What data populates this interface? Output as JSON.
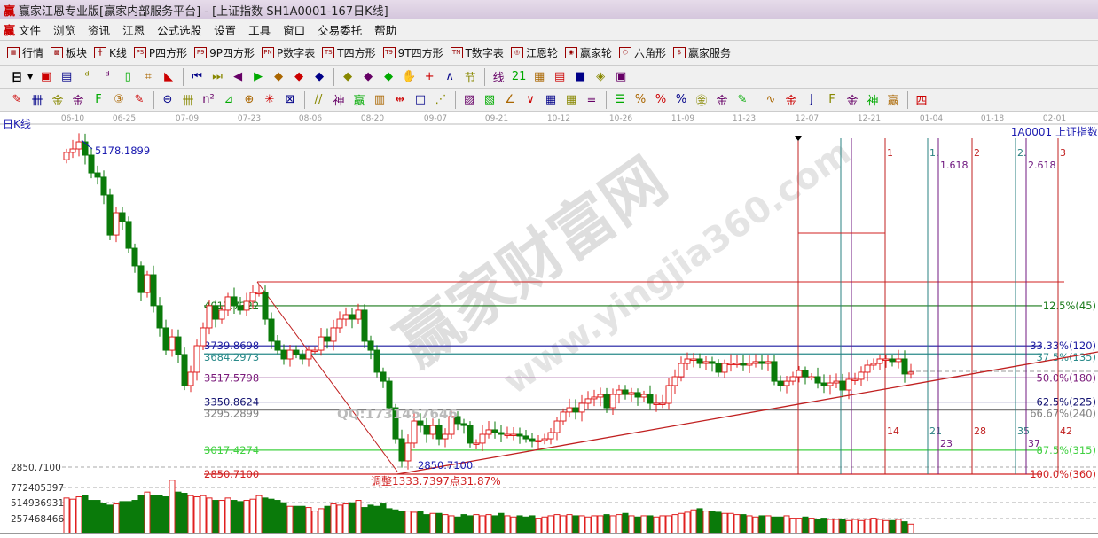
{
  "window": {
    "title": "赢家江恩专业版[赢家内部服务平台] - [上证指数  SH1A0001-167日K线]",
    "logo": "赢"
  },
  "menu": [
    "文件",
    "浏览",
    "资讯",
    "江恩",
    "公式选股",
    "设置",
    "工具",
    "窗口",
    "交易委托",
    "帮助"
  ],
  "toolbar1": [
    {
      "icon": "quote-table-icon",
      "label": "行情",
      "glyph": "▦"
    },
    {
      "icon": "sector-blocks-icon",
      "label": "板块",
      "glyph": "▩"
    },
    {
      "icon": "kline-icon",
      "label": "K线",
      "glyph": "╫"
    },
    {
      "icon": "ps-icon",
      "label": "P四方形",
      "glyph": "PS"
    },
    {
      "icon": "p9-icon",
      "label": "9P四方形",
      "glyph": "P9"
    },
    {
      "icon": "pn-icon",
      "label": "P数字表",
      "glyph": "PN"
    },
    {
      "icon": "ts-icon",
      "label": "T四方形",
      "glyph": "TS"
    },
    {
      "icon": "t9-icon",
      "label": "9T四方形",
      "glyph": "T9"
    },
    {
      "icon": "tn-icon",
      "label": "T数字表",
      "glyph": "TN"
    },
    {
      "icon": "gann-wheel-icon",
      "label": "江恩轮",
      "glyph": "◎"
    },
    {
      "icon": "winner-wheel-icon",
      "label": "赢家轮",
      "glyph": "◉"
    },
    {
      "icon": "hexagon-icon",
      "label": "六角形",
      "glyph": "⬡"
    },
    {
      "icon": "dollar-icon",
      "label": "赢家服务",
      "glyph": "$"
    }
  ],
  "toolbar2": {
    "period": "日",
    "icons": [
      [
        "window-icon",
        "▣"
      ],
      [
        "doc-icon",
        "▤"
      ],
      [
        "chart3-icon",
        "ᵈ"
      ],
      [
        "chart9-icon",
        "ᵈ"
      ],
      [
        "candle-type-icon",
        "▯"
      ],
      [
        "draw-icon",
        "⌗"
      ],
      [
        "flag-icon",
        "◣"
      ],
      [
        "first-icon",
        "⏮"
      ],
      [
        "last-icon",
        "⏭"
      ],
      [
        "left-icon",
        "◀"
      ],
      [
        "right-icon",
        "▶"
      ],
      [
        "zoom-left-icon",
        "◆"
      ],
      [
        "zoom-right-icon",
        "◆"
      ],
      [
        "expand-icon",
        "◆"
      ],
      [
        "shrink-icon",
        "◆"
      ],
      [
        "zoom-in-icon",
        "◆"
      ],
      [
        "zoom-out-icon",
        "◆"
      ],
      [
        "hand-icon",
        "✋"
      ],
      [
        "crosshair-icon",
        "+"
      ],
      [
        "line-icon",
        "∧"
      ],
      [
        "section-icon",
        "节"
      ],
      [
        "line-chart-icon",
        "线"
      ],
      [
        "calendar-icon",
        "21"
      ],
      [
        "calculator-icon",
        "▦"
      ],
      [
        "notes-icon",
        "▤"
      ],
      [
        "save-icon",
        "■"
      ],
      [
        "network-icon",
        "◈"
      ],
      [
        "print-icon",
        "▣"
      ]
    ]
  },
  "toolbar3": {
    "icons": [
      [
        "pen-icon",
        "✎"
      ],
      [
        "parallel-icon",
        "卌"
      ],
      [
        "gold-icon",
        "金"
      ],
      [
        "gold2-icon",
        "金"
      ],
      [
        "fib-icon",
        "F"
      ],
      [
        "spiral-icon",
        "③"
      ],
      [
        "pen2-icon",
        "✎"
      ],
      [
        "circle-icon",
        "⊖"
      ],
      [
        "grid-icon",
        "卌"
      ],
      [
        "n2-icon",
        "n²"
      ],
      [
        "angle-icon",
        "⊿"
      ],
      [
        "target-icon",
        "⊕"
      ],
      [
        "star-icon",
        "✳"
      ],
      [
        "box-icon",
        "⊠"
      ],
      [
        "ratio-icon",
        "//"
      ],
      [
        "shen-icon",
        "神"
      ],
      [
        "ying-icon",
        "赢"
      ],
      [
        "ruler-icon",
        "▥"
      ],
      [
        "measure-icon",
        "⇹"
      ],
      [
        "frame-icon",
        "□"
      ],
      [
        "fan-icon",
        "⋰"
      ],
      [
        "square-icon",
        "▨"
      ],
      [
        "square2-icon",
        "▧"
      ],
      [
        "angle2-icon",
        "∠"
      ],
      [
        "v-icon",
        "∨"
      ],
      [
        "grid2-icon",
        "▦"
      ],
      [
        "grid3-icon",
        "▦"
      ],
      [
        "lines-icon",
        "≡"
      ],
      [
        "list-icon",
        "☰"
      ],
      [
        "pct-icon",
        "%"
      ],
      [
        "pct2-icon",
        "%"
      ],
      [
        "pct3-icon",
        "%"
      ],
      [
        "gold-circle-icon",
        "㊎"
      ],
      [
        "gold3-icon",
        "金"
      ],
      [
        "tool-icon",
        "✎"
      ],
      [
        "wave-icon",
        "∿"
      ],
      [
        "gold4-icon",
        "金"
      ],
      [
        "j-icon",
        "J"
      ],
      [
        "f-icon",
        "F"
      ],
      [
        "gold5-icon",
        "金"
      ],
      [
        "shen2-icon",
        "神"
      ],
      [
        "ying2-icon",
        "赢"
      ],
      [
        "si-icon",
        "四"
      ]
    ]
  },
  "chart_data": {
    "type": "candlestick",
    "label": "日K线",
    "symbol": "1A0001  上证指数",
    "dates": [
      "06-10",
      "06-25",
      "07-09",
      "07-23",
      "08-06",
      "08-20",
      "09-07",
      "09-21",
      "10-12",
      "10-26",
      "11-09",
      "11-23",
      "12-07",
      "12-21",
      "01-04",
      "01-18",
      "02-01"
    ],
    "close": [
      5080,
      5104,
      5153,
      5061,
      4938,
      4908,
      4785,
      4508,
      4662,
      4601,
      4416,
      4294,
      4109,
      4232,
      4018,
      3864,
      3710,
      3802,
      3680,
      3465,
      3557,
      3741,
      3864,
      4018,
      3925,
      3987,
      4079,
      4018,
      3987,
      4048,
      4109,
      4109,
      3925,
      3772,
      3710,
      3649,
      3710,
      3680,
      3649,
      3710,
      3710,
      3802,
      3772,
      3864,
      3925,
      3956,
      3925,
      3987,
      3772,
      3710,
      3557,
      3495,
      3311,
      3096,
      2943,
      3066,
      3219,
      3188,
      3127,
      3188,
      3096,
      3127,
      3250,
      3201,
      3188,
      3066,
      3066,
      3127,
      3158,
      3139,
      3127,
      3127,
      3127,
      3115,
      3096,
      3078,
      3084,
      3096,
      3139,
      3219,
      3281,
      3311,
      3281,
      3342,
      3373,
      3385,
      3403,
      3311,
      3403,
      3434,
      3403,
      3416,
      3385,
      3403,
      3342,
      3342,
      3342,
      3465,
      3526,
      3618,
      3649,
      3649,
      3618,
      3631,
      3618,
      3557,
      3618,
      3618,
      3618,
      3606,
      3618,
      3631,
      3618,
      3631,
      3495,
      3465,
      3495,
      3526,
      3569,
      3526,
      3526,
      3483,
      3465,
      3483,
      3495,
      3434,
      3508,
      3508,
      3557,
      3606,
      3618,
      3649,
      3649,
      3631,
      3649,
      3545,
      3557
    ],
    "volume_millions": [
      600,
      580,
      620,
      640,
      560,
      560,
      510,
      480,
      500,
      540,
      540,
      560,
      640,
      700,
      650,
      650,
      620,
      900,
      700,
      680,
      640,
      620,
      640,
      600,
      560,
      560,
      600,
      560,
      540,
      560,
      580,
      640,
      600,
      580,
      560,
      520,
      460,
      460,
      460,
      440,
      380,
      420,
      460,
      500,
      480,
      500,
      520,
      560,
      440,
      480,
      460,
      500,
      420,
      400,
      380,
      380,
      360,
      380,
      320,
      340,
      340,
      320,
      300,
      280,
      320,
      300,
      320,
      300,
      320,
      300,
      340,
      300,
      280,
      300,
      280,
      300,
      260,
      280,
      300,
      320,
      300,
      320,
      300,
      300,
      280,
      300,
      300,
      320,
      300,
      320,
      340,
      300,
      280,
      300,
      300,
      280,
      300,
      300,
      320,
      340,
      360,
      400,
      420,
      380,
      380,
      360,
      340,
      340,
      320,
      320,
      300,
      280,
      300,
      300,
      280,
      280,
      300,
      260,
      260,
      280,
      260,
      240,
      260,
      240,
      240,
      240,
      220,
      240,
      220,
      240,
      260,
      240,
      220,
      220,
      240,
      200,
      160
    ],
    "y_axis_labels": [
      "2850.7100",
      "772405397",
      "514936931",
      "257468466"
    ],
    "fib_levels": [
      {
        "price": "4017.7322",
        "pct": "12.5%(45)",
        "color": "#1a7a1a"
      },
      {
        "price": "3739.8698",
        "pct": "33.33%(120)",
        "color": "#1a1aa0"
      },
      {
        "price": "3684.2973",
        "pct": "37.5%(135)",
        "color": "#2a8a8a"
      },
      {
        "price": "3517.5798",
        "pct": "50.0%(180)",
        "color": "#7a1a7a"
      },
      {
        "price": "3350.8624",
        "pct": "62.5%(225)",
        "color": "#101070"
      },
      {
        "price": "3295.2899",
        "pct": "66.67%(240)",
        "color": "#808080"
      },
      {
        "price": "3017.4274",
        "pct": "87.5%(315)",
        "color": "#40d040"
      },
      {
        "price": "2850.7100",
        "pct": "100.0%(360)",
        "color": "#d02020"
      }
    ],
    "time_lines": [
      {
        "top": "",
        "bottom": "",
        "color": "#c02020"
      },
      {
        "top": "",
        "bottom": "",
        "color": "#2a8080"
      },
      {
        "top": "",
        "bottom": "",
        "color": "#701a80"
      },
      {
        "top": "1",
        "bottom": "14",
        "color": "#c02020"
      },
      {
        "top": "1.",
        "bottom": "21",
        "color": "#2a8080"
      },
      {
        "top": "1.618",
        "bottom": "23",
        "color": "#701a80"
      },
      {
        "top": "2",
        "bottom": "28",
        "color": "#c02020"
      },
      {
        "top": "2.",
        "bottom": "35",
        "color": "#2a8080"
      },
      {
        "top": "2.618",
        "bottom": "37",
        "color": "#701a80"
      },
      {
        "top": "3",
        "bottom": "42",
        "color": "#c02020"
      }
    ],
    "annotations": {
      "high": "5178.1899",
      "low": "2850.7100",
      "adjust": "调整1333.7397点31.87%",
      "qq": "QQ:1731457646"
    },
    "watermark": {
      "name": "赢家财富网",
      "url": "www.yingjia360.com"
    },
    "colors": {
      "up": "#e02020",
      "down": "#0a7a0a"
    }
  }
}
